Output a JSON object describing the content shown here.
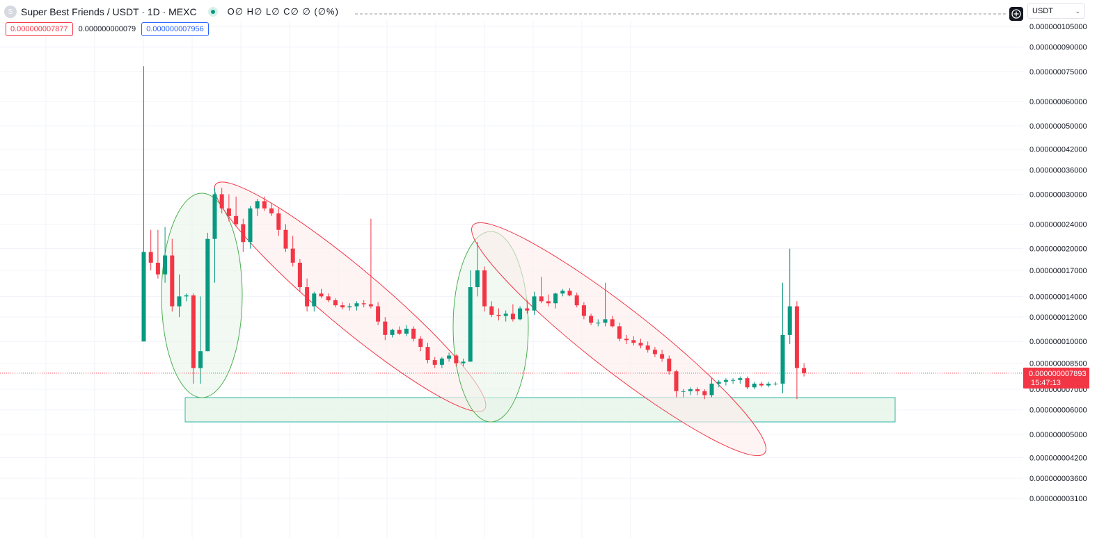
{
  "header": {
    "symbol_title": "Super Best Friends / USDT · 1D · MEXC",
    "logo_letter": "S",
    "ohlc_text": "O∅ H∅ L∅ C∅ ∅ (∅%)"
  },
  "quote": {
    "sell_price": "0.000000007877",
    "spread": "0.000000000079",
    "buy_price": "0.000000007956"
  },
  "currency_selector": {
    "value": "USDT"
  },
  "colors": {
    "up": "#089981",
    "down": "#f23645",
    "grid": "#f0f3fa",
    "accumulation_zone": "#2bb7a8",
    "bullish_ellipse": "#4caf50",
    "bearish_ellipse": "#f23645"
  },
  "icons": {
    "crosshair": "plus-circle-icon",
    "chevron": "chevron-down-icon"
  },
  "chart_data": {
    "type": "candlestick",
    "scale": "log",
    "grid": true,
    "y_ticks": [
      "0.000000105000",
      "0.000000090000",
      "0.000000075000",
      "0.000000060000",
      "0.000000050000",
      "0.000000042000",
      "0.000000036000",
      "0.000000030000",
      "0.000000024000",
      "0.000000020000",
      "0.000000017000",
      "0.000000014000",
      "0.000000012000",
      "0.000000010000",
      "0.000000008500",
      "0.000000007000",
      "0.000000006000",
      "0.000000005000",
      "0.000000004200",
      "0.000000003600",
      "0.000000003100"
    ],
    "y_tick_values": [
      105,
      90,
      75,
      60,
      50,
      42,
      36,
      30,
      24,
      20,
      17,
      14,
      12,
      10,
      8.5,
      7,
      6,
      5,
      4.2,
      3.6,
      3.1
    ],
    "value_unit_note": "values in units of 1e-9 USDT",
    "last_price": {
      "label": "0.000000007893",
      "value": 7.893,
      "countdown": "15:47:13"
    },
    "candles": [
      {
        "o": 10.0,
        "h": 78.0,
        "l": 10.0,
        "c": 19.5
      },
      {
        "o": 19.5,
        "h": 23.0,
        "l": 17.0,
        "c": 18.0
      },
      {
        "o": 18.0,
        "h": 23.0,
        "l": 16.0,
        "c": 16.5
      },
      {
        "o": 16.5,
        "h": 23.5,
        "l": 15.5,
        "c": 19.0
      },
      {
        "o": 19.0,
        "h": 21.5,
        "l": 12.5,
        "c": 13.0
      },
      {
        "o": 13.0,
        "h": 16.5,
        "l": 12.0,
        "c": 14.0
      },
      {
        "o": 14.0,
        "h": 14.3,
        "l": 13.5,
        "c": 14.1
      },
      {
        "o": 14.1,
        "h": 14.3,
        "l": 7.3,
        "c": 8.2
      },
      {
        "o": 8.2,
        "h": 14.0,
        "l": 7.3,
        "c": 9.3
      },
      {
        "o": 9.3,
        "h": 22.5,
        "l": 9.3,
        "c": 21.5
      },
      {
        "o": 21.5,
        "h": 31.5,
        "l": 15.5,
        "c": 30.0
      },
      {
        "o": 30.0,
        "h": 31.5,
        "l": 26.0,
        "c": 27.0
      },
      {
        "o": 27.0,
        "h": 30.0,
        "l": 24.5,
        "c": 25.5
      },
      {
        "o": 25.5,
        "h": 29.5,
        "l": 23.5,
        "c": 24.0
      },
      {
        "o": 24.0,
        "h": 25.0,
        "l": 19.5,
        "c": 21.0
      },
      {
        "o": 21.0,
        "h": 27.5,
        "l": 20.0,
        "c": 27.0
      },
      {
        "o": 27.0,
        "h": 29.0,
        "l": 25.5,
        "c": 28.5
      },
      {
        "o": 28.5,
        "h": 29.5,
        "l": 26.5,
        "c": 27.0
      },
      {
        "o": 27.0,
        "h": 28.0,
        "l": 25.5,
        "c": 26.0
      },
      {
        "o": 26.0,
        "h": 27.0,
        "l": 22.0,
        "c": 23.0
      },
      {
        "o": 23.0,
        "h": 24.0,
        "l": 19.5,
        "c": 20.0
      },
      {
        "o": 20.0,
        "h": 22.0,
        "l": 17.5,
        "c": 18.0
      },
      {
        "o": 18.0,
        "h": 18.5,
        "l": 14.5,
        "c": 15.0
      },
      {
        "o": 15.0,
        "h": 16.0,
        "l": 12.5,
        "c": 13.0
      },
      {
        "o": 13.0,
        "h": 14.5,
        "l": 12.5,
        "c": 14.3
      },
      {
        "o": 14.3,
        "h": 14.8,
        "l": 13.8,
        "c": 14.0
      },
      {
        "o": 14.0,
        "h": 14.3,
        "l": 13.4,
        "c": 13.6
      },
      {
        "o": 13.6,
        "h": 13.8,
        "l": 12.9,
        "c": 13.1
      },
      {
        "o": 13.1,
        "h": 13.4,
        "l": 12.7,
        "c": 12.9
      },
      {
        "o": 12.9,
        "h": 13.3,
        "l": 12.6,
        "c": 13.0
      },
      {
        "o": 13.0,
        "h": 13.5,
        "l": 12.6,
        "c": 13.3
      },
      {
        "o": 13.3,
        "h": 13.6,
        "l": 12.9,
        "c": 13.2
      },
      {
        "o": 13.2,
        "h": 25.0,
        "l": 12.8,
        "c": 13.0
      },
      {
        "o": 13.0,
        "h": 13.4,
        "l": 11.3,
        "c": 11.6
      },
      {
        "o": 11.6,
        "h": 12.0,
        "l": 10.1,
        "c": 10.5
      },
      {
        "o": 10.5,
        "h": 11.0,
        "l": 10.3,
        "c": 10.9
      },
      {
        "o": 10.9,
        "h": 11.2,
        "l": 10.5,
        "c": 10.6
      },
      {
        "o": 10.6,
        "h": 11.3,
        "l": 10.4,
        "c": 11.0
      },
      {
        "o": 11.0,
        "h": 11.2,
        "l": 10.0,
        "c": 10.2
      },
      {
        "o": 10.2,
        "h": 10.4,
        "l": 9.3,
        "c": 9.6
      },
      {
        "o": 9.6,
        "h": 9.9,
        "l": 8.5,
        "c": 8.7
      },
      {
        "o": 8.7,
        "h": 8.9,
        "l": 8.2,
        "c": 8.4
      },
      {
        "o": 8.4,
        "h": 8.9,
        "l": 8.2,
        "c": 8.8
      },
      {
        "o": 8.8,
        "h": 9.2,
        "l": 8.6,
        "c": 9.0
      },
      {
        "o": 9.0,
        "h": 9.1,
        "l": 8.3,
        "c": 8.5
      },
      {
        "o": 8.5,
        "h": 8.8,
        "l": 8.3,
        "c": 8.6
      },
      {
        "o": 8.6,
        "h": 17.0,
        "l": 8.6,
        "c": 15.0
      },
      {
        "o": 15.0,
        "h": 21.0,
        "l": 14.0,
        "c": 17.0
      },
      {
        "o": 17.0,
        "h": 17.5,
        "l": 12.5,
        "c": 13.0
      },
      {
        "o": 13.0,
        "h": 13.5,
        "l": 12.0,
        "c": 12.2
      },
      {
        "o": 12.2,
        "h": 12.8,
        "l": 11.7,
        "c": 12.1
      },
      {
        "o": 12.1,
        "h": 12.6,
        "l": 11.6,
        "c": 12.3
      },
      {
        "o": 12.3,
        "h": 13.2,
        "l": 11.6,
        "c": 11.8
      },
      {
        "o": 11.8,
        "h": 13.0,
        "l": 11.7,
        "c": 12.8
      },
      {
        "o": 12.8,
        "h": 13.6,
        "l": 12.3,
        "c": 12.6
      },
      {
        "o": 12.6,
        "h": 14.5,
        "l": 12.2,
        "c": 14.0
      },
      {
        "o": 14.0,
        "h": 16.2,
        "l": 13.3,
        "c": 13.5
      },
      {
        "o": 13.5,
        "h": 14.2,
        "l": 13.0,
        "c": 13.3
      },
      {
        "o": 13.3,
        "h": 14.4,
        "l": 12.8,
        "c": 14.3
      },
      {
        "o": 14.3,
        "h": 14.8,
        "l": 14.0,
        "c": 14.6
      },
      {
        "o": 14.6,
        "h": 14.9,
        "l": 14.0,
        "c": 14.1
      },
      {
        "o": 14.1,
        "h": 14.4,
        "l": 12.9,
        "c": 13.1
      },
      {
        "o": 13.1,
        "h": 13.4,
        "l": 11.8,
        "c": 12.1
      },
      {
        "o": 12.1,
        "h": 12.3,
        "l": 11.3,
        "c": 11.5
      },
      {
        "o": 11.5,
        "h": 11.8,
        "l": 11.2,
        "c": 11.5
      },
      {
        "o": 11.5,
        "h": 15.5,
        "l": 11.2,
        "c": 11.8
      },
      {
        "o": 11.8,
        "h": 12.1,
        "l": 11.1,
        "c": 11.2
      },
      {
        "o": 11.2,
        "h": 11.5,
        "l": 10.0,
        "c": 10.2
      },
      {
        "o": 10.2,
        "h": 10.5,
        "l": 9.8,
        "c": 10.1
      },
      {
        "o": 10.1,
        "h": 10.4,
        "l": 9.7,
        "c": 9.9
      },
      {
        "o": 9.9,
        "h": 10.2,
        "l": 9.5,
        "c": 9.7
      },
      {
        "o": 9.7,
        "h": 10.0,
        "l": 9.2,
        "c": 9.4
      },
      {
        "o": 9.4,
        "h": 9.6,
        "l": 8.9,
        "c": 9.1
      },
      {
        "o": 9.1,
        "h": 9.4,
        "l": 8.6,
        "c": 8.8
      },
      {
        "o": 8.8,
        "h": 9.0,
        "l": 7.8,
        "c": 8.0
      },
      {
        "o": 8.0,
        "h": 8.1,
        "l": 6.6,
        "c": 6.9
      },
      {
        "o": 6.9,
        "h": 7.0,
        "l": 6.6,
        "c": 6.9
      },
      {
        "o": 6.9,
        "h": 7.1,
        "l": 6.7,
        "c": 7.0
      },
      {
        "o": 7.0,
        "h": 7.1,
        "l": 6.7,
        "c": 6.9
      },
      {
        "o": 6.9,
        "h": 7.0,
        "l": 6.5,
        "c": 6.7
      },
      {
        "o": 6.7,
        "h": 7.6,
        "l": 6.6,
        "c": 7.3
      },
      {
        "o": 7.3,
        "h": 7.5,
        "l": 7.1,
        "c": 7.4
      },
      {
        "o": 7.4,
        "h": 7.6,
        "l": 7.2,
        "c": 7.5
      },
      {
        "o": 7.5,
        "h": 7.6,
        "l": 7.3,
        "c": 7.5
      },
      {
        "o": 7.5,
        "h": 7.7,
        "l": 7.3,
        "c": 7.6
      },
      {
        "o": 7.6,
        "h": 7.7,
        "l": 7.0,
        "c": 7.1
      },
      {
        "o": 7.1,
        "h": 7.4,
        "l": 7.0,
        "c": 7.3
      },
      {
        "o": 7.3,
        "h": 7.4,
        "l": 7.1,
        "c": 7.2
      },
      {
        "o": 7.2,
        "h": 7.4,
        "l": 7.1,
        "c": 7.3
      },
      {
        "o": 7.3,
        "h": 7.4,
        "l": 7.2,
        "c": 7.3
      },
      {
        "o": 7.3,
        "h": 15.5,
        "l": 6.8,
        "c": 10.5
      },
      {
        "o": 10.5,
        "h": 20.0,
        "l": 9.8,
        "c": 13.0
      },
      {
        "o": 13.0,
        "h": 13.5,
        "l": 6.5,
        "c": 8.2
      },
      {
        "o": 8.2,
        "h": 8.5,
        "l": 7.7,
        "c": 7.9
      }
    ]
  }
}
